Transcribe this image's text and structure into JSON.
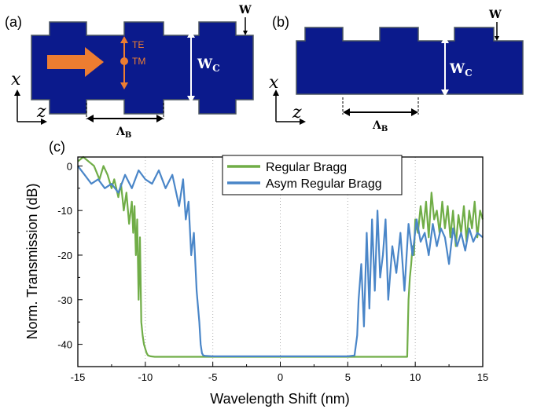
{
  "panels": {
    "a": {
      "label": "(a)",
      "te_label": "TE",
      "tm_label": "TM",
      "w_label": "W",
      "wc_label": "W",
      "wc_sub": "C",
      "period_label": "Λ",
      "period_sub": "B",
      "axis_x": "x",
      "axis_z": "z"
    },
    "b": {
      "label": "(b)",
      "w_label": "W",
      "wc_label": "W",
      "wc_sub": "C",
      "period_label": "Λ",
      "period_sub": "B",
      "axis_x": "x",
      "axis_z": "z"
    }
  },
  "colors": {
    "waveguide": "#0b1a8c",
    "waveguide_edge": "#4a5560",
    "arrow": "#ed7d31",
    "regular_bragg": "#70ad47",
    "asym_bragg": "#4a86c8"
  },
  "chart_data": {
    "type": "line",
    "panel_label": "(c)",
    "xlabel": "Wavelength Shift (nm)",
    "ylabel": "Norm. Transmission (dB)",
    "xlim": [
      -15,
      15
    ],
    "ylim": [
      -45,
      2
    ],
    "x_ticks": [
      -15,
      -10,
      -5,
      0,
      5,
      10,
      15
    ],
    "x_tick_labels": [
      "-15",
      "-10",
      "-5",
      "0",
      "5",
      "10",
      "15"
    ],
    "y_ticks": [
      0,
      -10,
      -20,
      -30,
      -40
    ],
    "y_tick_labels": [
      "0",
      "-10",
      "-20",
      "-30",
      "-40"
    ],
    "grid": "dotted vertical at x ticks",
    "legend_position": "top-center",
    "series": [
      {
        "name": "Regular Bragg",
        "color": "#70ad47",
        "x": [
          -15,
          -14.6,
          -14.2,
          -13.8,
          -13.4,
          -13.1,
          -12.8,
          -12.5,
          -12.3,
          -12.0,
          -11.8,
          -11.6,
          -11.4,
          -11.2,
          -11.0,
          -10.9,
          -10.8,
          -10.7,
          -10.6,
          -10.5,
          -10.4,
          -10.3,
          -10.2,
          -10.1,
          -10.0,
          -9.9,
          -9.8,
          -9.6,
          -9.3,
          -9.0,
          -5,
          0,
          5,
          9.0,
          9.3,
          9.4,
          9.5,
          9.6,
          9.7,
          9.8,
          9.9,
          10.0,
          10.2,
          10.4,
          10.6,
          10.8,
          11.0,
          11.2,
          11.4,
          11.6,
          11.8,
          12.0,
          12.2,
          12.4,
          12.6,
          12.8,
          13.0,
          13.2,
          13.4,
          13.6,
          13.8,
          14.0,
          14.2,
          14.4,
          14.6,
          14.8,
          15.0
        ],
        "y": [
          1,
          2,
          1,
          0,
          -3,
          0,
          -2,
          -5,
          -3,
          -7,
          -4,
          -10,
          -6,
          -13,
          -8,
          -15,
          -9,
          -20,
          -12,
          -30,
          -16,
          -35,
          -38,
          -40,
          -41,
          -42,
          -42.5,
          -42.7,
          -42.8,
          -42.8,
          -42.8,
          -42.8,
          -42.8,
          -42.8,
          -42.8,
          -42.8,
          -30,
          -25,
          -22,
          -18,
          -20,
          -12,
          -15,
          -9,
          -14,
          -8,
          -16,
          -6,
          -12,
          -10,
          -15,
          -8,
          -14,
          -9,
          -16,
          -10,
          -18,
          -11,
          -15,
          -9,
          -17,
          -10,
          -14,
          -8,
          -16,
          -10,
          -12
        ]
      },
      {
        "name": "Asym Regular Bragg",
        "color": "#4a86c8",
        "x": [
          -15,
          -14.5,
          -14.0,
          -13.5,
          -13.0,
          -12.5,
          -12.0,
          -11.5,
          -11.0,
          -10.5,
          -10.0,
          -9.5,
          -9.0,
          -8.5,
          -8.0,
          -7.5,
          -7.2,
          -7.0,
          -6.8,
          -6.6,
          -6.4,
          -6.2,
          -6.0,
          -5.9,
          -5.8,
          -5.7,
          -5.5,
          -5.0,
          -3.0,
          -2.0,
          0.0,
          2.0,
          4.0,
          5.0,
          5.5,
          5.7,
          5.8,
          6.0,
          6.2,
          6.4,
          6.6,
          6.8,
          7.0,
          7.2,
          7.4,
          7.6,
          7.8,
          8.0,
          8.3,
          8.6,
          8.9,
          9.2,
          9.5,
          9.8,
          10.1,
          10.4,
          10.7,
          11.0,
          11.3,
          11.6,
          11.9,
          12.2,
          12.5,
          12.8,
          13.1,
          13.4,
          13.7,
          14.0,
          14.3,
          14.6,
          15.0
        ],
        "y": [
          0,
          -2,
          -4,
          -3,
          -5,
          -4,
          -6,
          -2,
          -5,
          -1,
          -3,
          -4,
          -1,
          -5,
          -2,
          -9,
          -3,
          -12,
          -8,
          -20,
          -15,
          -28,
          -35,
          -40,
          -42,
          -42.5,
          -42.6,
          -42.7,
          -42.7,
          -42.7,
          -42.7,
          -42.7,
          -42.7,
          -42.7,
          -42.5,
          -38,
          -30,
          -22,
          -36,
          -15,
          -32,
          -12,
          -28,
          -10,
          -25,
          -20,
          -12,
          -30,
          -18,
          -24,
          -15,
          -28,
          -13,
          -20,
          -12,
          -17,
          -15,
          -20,
          -13,
          -18,
          -14,
          -16,
          -22,
          -14,
          -18,
          -15,
          -19,
          -14,
          -17,
          -15,
          -16
        ]
      }
    ]
  }
}
